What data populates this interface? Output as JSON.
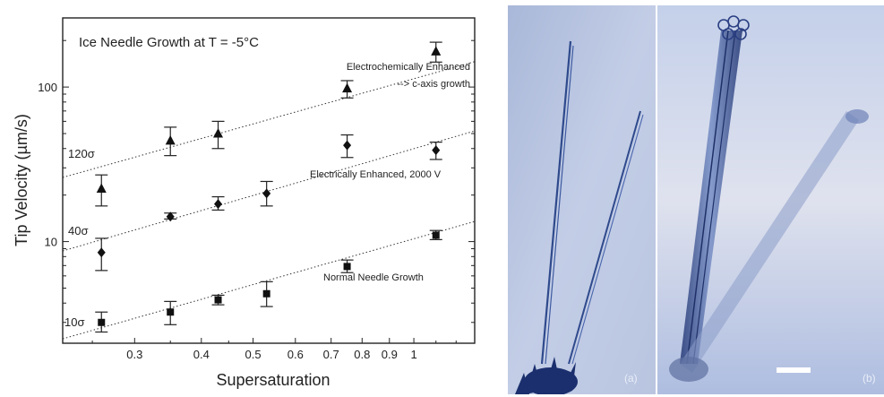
{
  "chart_data": {
    "type": "scatter",
    "title": "Ice Needle Growth at T = -5°C",
    "xlabel": "Supersaturation",
    "ylabel": "Tip Velocity (µm/s)",
    "xscale": "log",
    "yscale": "log",
    "xlim": [
      0.22,
      1.3
    ],
    "ylim": [
      2.2,
      280
    ],
    "x_ticks": [
      0.3,
      0.4,
      0.5,
      0.6,
      0.7,
      0.8,
      0.9,
      1
    ],
    "x_tick_labels": [
      "0.3",
      "0.4",
      "0.5",
      "0.6",
      "0.7",
      "0.8",
      "0.9",
      "1"
    ],
    "y_ticks": [
      10,
      100
    ],
    "y_tick_labels": [
      "10",
      "100"
    ],
    "series": [
      {
        "marker": "triangle",
        "points": [
          {
            "x": 0.26,
            "y": 22,
            "lo": 17,
            "hi": 27
          },
          {
            "x": 0.35,
            "y": 45,
            "lo": 36,
            "hi": 55
          },
          {
            "x": 0.43,
            "y": 50,
            "lo": 40,
            "hi": 60
          },
          {
            "x": 0.75,
            "y": 98,
            "lo": 85,
            "hi": 110
          },
          {
            "x": 1.1,
            "y": 170,
            "lo": 145,
            "hi": 195
          }
        ]
      },
      {
        "marker": "diamond",
        "points": [
          {
            "x": 0.26,
            "y": 8.5,
            "lo": 6.5,
            "hi": 10.5
          },
          {
            "x": 0.35,
            "y": 14.5,
            "lo": 14,
            "hi": 15.3
          },
          {
            "x": 0.43,
            "y": 17.5,
            "lo": 16,
            "hi": 19.5
          },
          {
            "x": 0.53,
            "y": 20.5,
            "lo": 17,
            "hi": 24.5
          },
          {
            "x": 0.75,
            "y": 42,
            "lo": 35,
            "hi": 49
          },
          {
            "x": 1.1,
            "y": 39,
            "lo": 34,
            "hi": 44
          }
        ]
      },
      {
        "marker": "square",
        "points": [
          {
            "x": 0.26,
            "y": 3.0,
            "lo": 2.6,
            "hi": 3.5
          },
          {
            "x": 0.35,
            "y": 3.5,
            "lo": 2.9,
            "hi": 4.1
          },
          {
            "x": 0.43,
            "y": 4.2,
            "lo": 3.9,
            "hi": 4.5
          },
          {
            "x": 0.53,
            "y": 4.6,
            "lo": 3.8,
            "hi": 5.5
          },
          {
            "x": 0.75,
            "y": 6.9,
            "lo": 6.3,
            "hi": 7.6
          },
          {
            "x": 1.1,
            "y": 11,
            "lo": 10.3,
            "hi": 11.8
          }
        ]
      }
    ],
    "reference_lines": [
      {
        "label": "120σ",
        "x0": 0.22,
        "y0": 26,
        "x1": 1.3,
        "y1": 146
      },
      {
        "label": "40σ",
        "x0": 0.22,
        "y0": 8.7,
        "x1": 1.3,
        "y1": 52
      },
      {
        "label": "10σ",
        "x0": 0.22,
        "y0": 2.35,
        "x1": 1.3,
        "y1": 13.5
      }
    ],
    "annotations": [
      "Electrochemically Enhanced",
      "--> c-axis growth",
      "Electrically Enhanced, 2000 V",
      "Normal Needle Growth"
    ]
  },
  "photos": {
    "label_a": "(a)",
    "label_b": "(b)"
  }
}
